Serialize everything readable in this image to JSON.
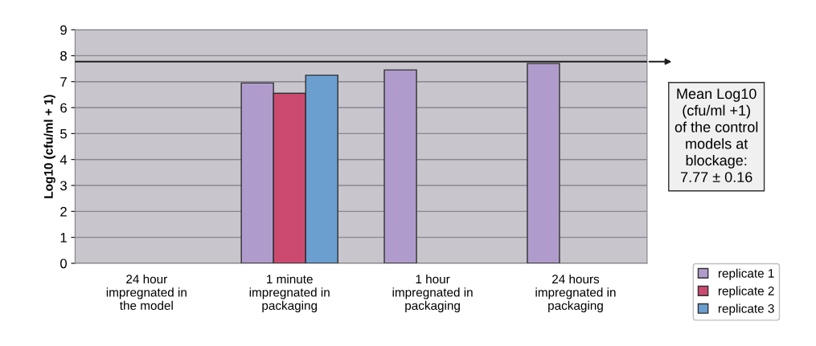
{
  "chart_data": {
    "type": "bar",
    "ylabel": "Log10 (cfu/ml + 1)",
    "categories": [
      "24 hour\nimpregnated in\nthe model",
      "1 minute\nimpregnated in\npackaging",
      "1 hour\nimpregnated in\npackaging",
      "24 hours\nimpregnated in\npackaging"
    ],
    "series": [
      {
        "name": "replicate 1",
        "color": "#b09ccc",
        "values": [
          null,
          6.95,
          7.45,
          7.7
        ]
      },
      {
        "name": "replicate 2",
        "color": "#cc4a70",
        "values": [
          null,
          6.55,
          null,
          null
        ]
      },
      {
        "name": "replicate 3",
        "color": "#6a9fd0",
        "values": [
          null,
          7.25,
          null,
          null
        ]
      }
    ],
    "ylim": [
      0,
      9
    ],
    "yticks": [
      0,
      1,
      2,
      3,
      4,
      5,
      6,
      7,
      8,
      9
    ],
    "grid": "y",
    "legend": "bottom right",
    "ref_lines": [
      {
        "axis": "y",
        "value": 7.77,
        "label": "Mean Log10\n(cfu/ml +1)\nof the control\nmodels at\nblockage:\n7.77 ± 0.16",
        "color": "#202020"
      }
    ]
  }
}
